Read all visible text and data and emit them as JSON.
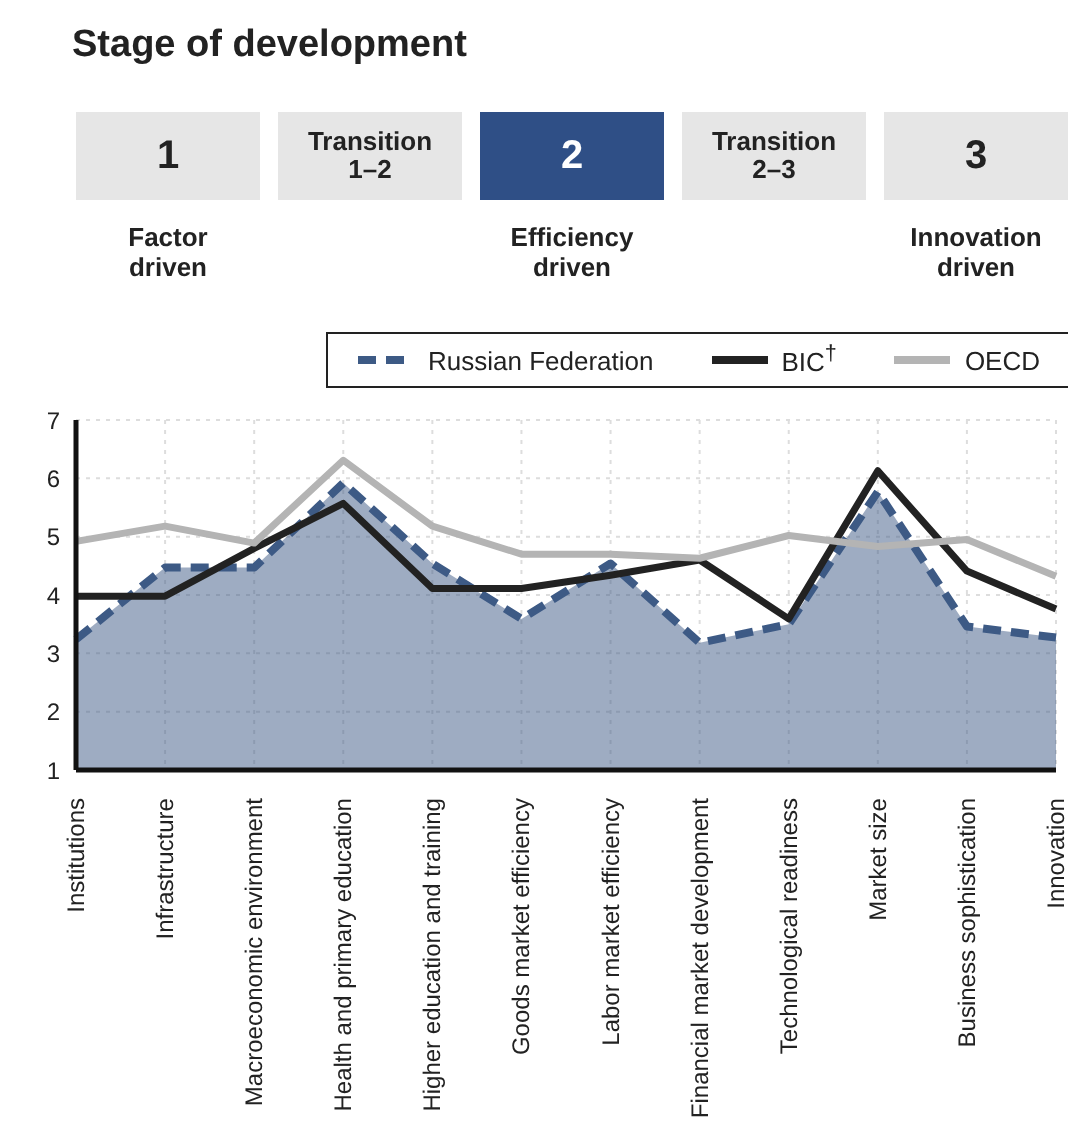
{
  "chart_data": {
    "type": "line",
    "title": "Stage of development",
    "annotations": [
      "1",
      "Transition 1–2",
      "2",
      "Transition 2–3",
      "3",
      "Factor driven",
      "Efficiency driven",
      "Innovation driven"
    ],
    "categories": [
      "Institutions",
      "Infrastructure",
      "Macroeconomic environment",
      "Health and primary education",
      "Higher education and training",
      "Goods market efficiency",
      "Labor market efficiency",
      "Financial market development",
      "Technological readiness",
      "Market size",
      "Business sophistication",
      "Innovation"
    ],
    "series": [
      {
        "name": "Russian Federation",
        "type": "area",
        "line_style": "dashed",
        "color": "#3d5a85",
        "values": [
          3.24,
          4.47,
          4.47,
          5.92,
          4.54,
          3.59,
          4.54,
          3.18,
          3.5,
          5.77,
          3.46,
          3.27
        ]
      },
      {
        "name": "BIC$^{†}$",
        "line_style": "solid",
        "color": "#222222",
        "values": [
          3.98,
          3.98,
          4.8,
          5.57,
          4.11,
          4.11,
          4.34,
          4.6,
          3.59,
          6.13,
          4.41,
          3.76
        ]
      },
      {
        "name": "OECD",
        "line_style": "solid",
        "color": "#b4b4b4",
        "values": [
          4.92,
          5.18,
          4.89,
          6.31,
          5.18,
          4.7,
          4.7,
          4.63,
          5.02,
          4.83,
          4.95,
          4.32
        ]
      }
    ],
    "ylim": [
      1,
      7
    ],
    "yticks": [
      1,
      2,
      3,
      4,
      5,
      6,
      7
    ],
    "grid": true,
    "legend": "top"
  }
}
